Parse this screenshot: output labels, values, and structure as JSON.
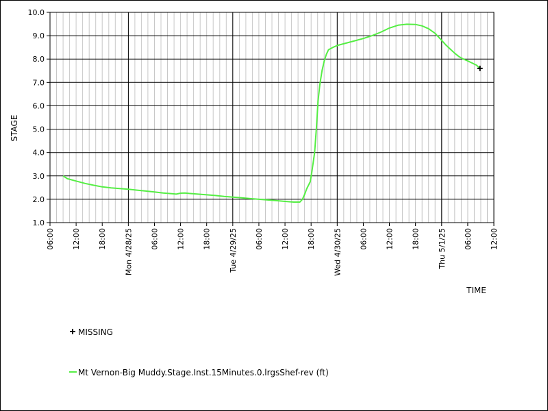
{
  "chart_data": {
    "type": "line",
    "xlabel": "TIME",
    "ylabel": "STAGE",
    "ylim": [
      1.0,
      10.0
    ],
    "yticks": [
      "1.0",
      "2.0",
      "3.0",
      "4.0",
      "5.0",
      "6.0",
      "7.0",
      "8.0",
      "9.0",
      "10.0"
    ],
    "xlim_hours": [
      0,
      102
    ],
    "xticks": [
      {
        "h": 0,
        "label": "06:00"
      },
      {
        "h": 6,
        "label": "12:00"
      },
      {
        "h": 12,
        "label": "18:00"
      },
      {
        "h": 18,
        "label": "Mon 4/28/25"
      },
      {
        "h": 24,
        "label": "06:00"
      },
      {
        "h": 30,
        "label": "12:00"
      },
      {
        "h": 36,
        "label": "18:00"
      },
      {
        "h": 42,
        "label": "Tue 4/29/25"
      },
      {
        "h": 48,
        "label": "06:00"
      },
      {
        "h": 54,
        "label": "12:00"
      },
      {
        "h": 60,
        "label": "18:00"
      },
      {
        "h": 66,
        "label": "Wed 4/30/25"
      },
      {
        "h": 72,
        "label": "06:00"
      },
      {
        "h": 78,
        "label": "12:00"
      },
      {
        "h": 84,
        "label": "18:00"
      },
      {
        "h": 90,
        "label": "Thu 5/1/25"
      },
      {
        "h": 96,
        "label": "06:00"
      },
      {
        "h": 102,
        "label": "12:00"
      }
    ],
    "major_gridlines_hours": [
      18,
      42,
      66,
      90
    ],
    "grid": true,
    "series": [
      {
        "name": "Mt Vernon-Big Muddy.Stage.Inst.15Minutes.0.lrgsShef-rev (ft)",
        "color": "#55ee44",
        "points": [
          [
            3.0,
            3.0
          ],
          [
            4,
            2.88
          ],
          [
            6,
            2.78
          ],
          [
            8,
            2.68
          ],
          [
            10,
            2.6
          ],
          [
            12,
            2.53
          ],
          [
            14,
            2.49
          ],
          [
            16,
            2.46
          ],
          [
            18,
            2.43
          ],
          [
            20,
            2.39
          ],
          [
            22,
            2.35
          ],
          [
            24,
            2.31
          ],
          [
            26,
            2.27
          ],
          [
            28,
            2.24
          ],
          [
            29,
            2.22
          ],
          [
            30,
            2.26
          ],
          [
            31,
            2.27
          ],
          [
            32,
            2.25
          ],
          [
            34,
            2.22
          ],
          [
            36,
            2.19
          ],
          [
            38,
            2.16
          ],
          [
            40,
            2.12
          ],
          [
            42,
            2.09
          ],
          [
            44,
            2.06
          ],
          [
            46,
            2.03
          ],
          [
            48,
            2.0
          ],
          [
            50,
            1.97
          ],
          [
            52,
            1.94
          ],
          [
            54,
            1.91
          ],
          [
            56,
            1.88
          ],
          [
            57.4,
            1.88
          ],
          [
            58,
            2.0
          ],
          [
            58.5,
            2.2
          ],
          [
            59,
            2.45
          ],
          [
            59.8,
            2.75
          ],
          [
            60.2,
            3.2
          ],
          [
            60.8,
            4.0
          ],
          [
            61.2,
            5.0
          ],
          [
            61.6,
            6.2
          ],
          [
            62,
            6.9
          ],
          [
            62.5,
            7.5
          ],
          [
            63,
            7.9
          ],
          [
            63.5,
            8.2
          ],
          [
            64,
            8.4
          ],
          [
            65,
            8.5
          ],
          [
            66,
            8.58
          ],
          [
            68,
            8.68
          ],
          [
            70,
            8.78
          ],
          [
            72,
            8.88
          ],
          [
            74,
            9.0
          ],
          [
            76,
            9.15
          ],
          [
            78,
            9.33
          ],
          [
            80,
            9.45
          ],
          [
            82,
            9.49
          ],
          [
            84,
            9.48
          ],
          [
            85.5,
            9.42
          ],
          [
            87,
            9.3
          ],
          [
            88.5,
            9.1
          ],
          [
            90,
            8.8
          ],
          [
            91,
            8.6
          ],
          [
            92,
            8.42
          ],
          [
            93,
            8.25
          ],
          [
            94,
            8.1
          ],
          [
            95,
            8.0
          ],
          [
            96,
            7.92
          ],
          [
            97,
            7.83
          ],
          [
            98,
            7.74
          ],
          [
            98.8,
            7.6
          ]
        ]
      }
    ],
    "missing_markers": [
      [
        98.8,
        7.6
      ]
    ],
    "legend": {
      "missing_label": "MISSING",
      "series_label": "Mt Vernon-Big Muddy.Stage.Inst.15Minutes.0.lrgsShef-rev (ft)"
    }
  }
}
